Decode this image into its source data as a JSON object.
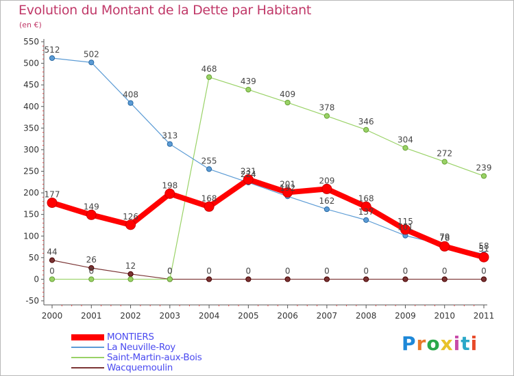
{
  "title": "Evolution du Montant de la Dette par Habitant",
  "unit": "(en €)",
  "brand": {
    "text": "Proxiti",
    "colors": [
      "#1e88d8",
      "#e8792a",
      "#2aa84a",
      "#e8c22a",
      "#c84aa8",
      "#2aa8c8",
      "#e84a2a"
    ]
  },
  "chart_data": {
    "type": "line",
    "categories": [
      "2000",
      "2001",
      "2002",
      "2003",
      "2004",
      "2005",
      "2006",
      "2007",
      "2008",
      "2009",
      "2010",
      "2011"
    ],
    "ylim": [
      -50,
      550
    ],
    "yticks": [
      -50,
      0,
      50,
      100,
      150,
      200,
      250,
      300,
      350,
      400,
      450,
      500,
      550
    ],
    "grid": false,
    "legend_position": "bottom-left",
    "series": [
      {
        "name": "MONTIERS",
        "color": "#ff0000",
        "emphasis": true,
        "values": [
          177,
          149,
          126,
          198,
          168,
          231,
          201,
          209,
          168,
          115,
          76,
          51
        ],
        "labels": [
          "177",
          "149",
          "126",
          "198",
          "168",
          "231",
          "201",
          "209",
          "168",
          "115",
          "76",
          "51"
        ]
      },
      {
        "name": "La Neuville-Roy",
        "color": "#5b9bd5",
        "values": [
          512,
          502,
          408,
          313,
          255,
          224,
          192,
          162,
          137,
          101,
          79,
          58
        ],
        "labels": [
          "512",
          "502",
          "408",
          "313",
          "255",
          "224",
          "192",
          "162",
          "137",
          "101",
          "79",
          "58"
        ]
      },
      {
        "name": "Saint-Martin-aux-Bois",
        "color": "#99d266",
        "values": [
          0,
          0,
          0,
          0,
          468,
          439,
          409,
          378,
          346,
          304,
          272,
          239
        ],
        "labels": [
          "0",
          "0",
          "",
          "0",
          "468",
          "439",
          "409",
          "378",
          "346",
          "304",
          "272",
          "239"
        ]
      },
      {
        "name": "Wacquemoulin",
        "color": "#7a3333",
        "values": [
          44,
          26,
          12,
          0,
          0,
          0,
          0,
          0,
          0,
          0,
          0,
          0
        ],
        "labels": [
          "44",
          "26",
          "12",
          "0",
          "0",
          "0",
          "0",
          "0",
          "0",
          "0",
          "0",
          "0"
        ]
      }
    ]
  }
}
